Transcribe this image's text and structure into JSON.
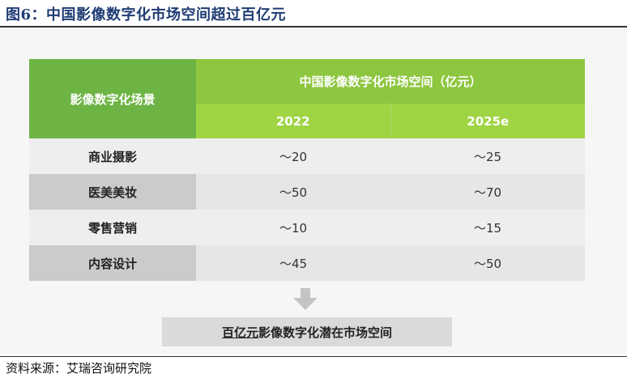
{
  "figure": {
    "title": "图6：中国影像数字化市场空间超过百亿元",
    "source": "资料来源：艾瑞咨询研究院"
  },
  "table": {
    "row_header": "影像数字化场景",
    "group_header": "中国影像数字化市场空间（亿元）",
    "years": [
      "2022",
      "2025e"
    ],
    "rows": [
      {
        "scene": "商业摄影",
        "v2022": "～20",
        "v2025": "～25"
      },
      {
        "scene": "医美美妆",
        "v2022": "～50",
        "v2025": "～70"
      },
      {
        "scene": "零售营销",
        "v2022": "～10",
        "v2025": "～15"
      },
      {
        "scene": "内容设计",
        "v2022": "～45",
        "v2025": "～50"
      }
    ]
  },
  "summary": {
    "emphasis": "百亿元",
    "rest": "影像数字化潜在市场空间"
  },
  "colors": {
    "header_dark_green": "#6db444",
    "header_green": "#8dc63f",
    "header_light_green": "#9fd443",
    "title_blue": "#1f3b73"
  }
}
